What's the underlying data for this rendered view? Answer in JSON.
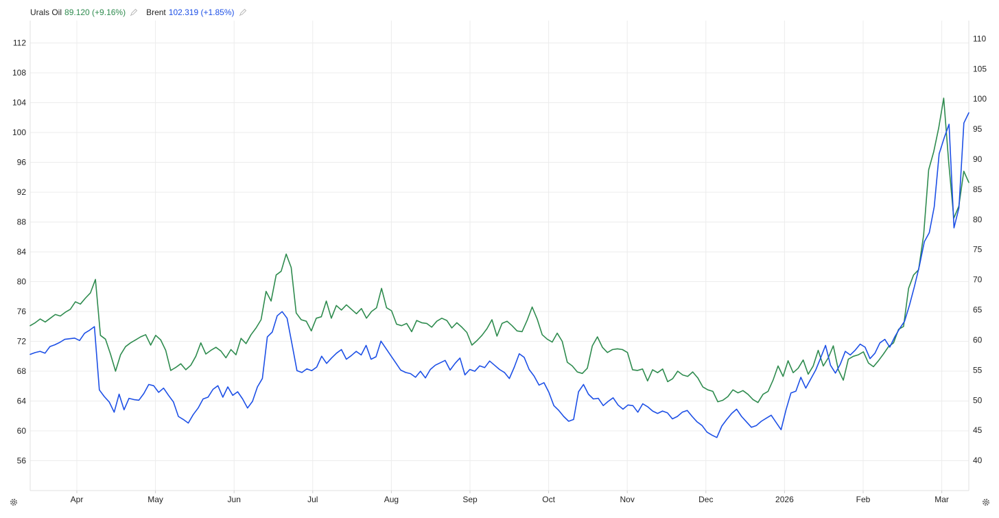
{
  "legend": {
    "a_name": "Urals Oil",
    "a_value": "89.120 (+9.16%)",
    "b_name": "Brent",
    "b_value": "102.319 (+1.85%)"
  },
  "icons": {
    "edit": "pencil-icon",
    "settings": "gear-icon"
  },
  "chart_data": {
    "type": "line",
    "x_labels": [
      "Apr",
      "May",
      "Jun",
      "Jul",
      "Aug",
      "Sep",
      "Oct",
      "Nov",
      "Dec",
      "2026",
      "Feb",
      "Mar"
    ],
    "y_left": {
      "ticks": [
        56,
        60,
        64,
        68,
        72,
        76,
        80,
        84,
        88,
        92,
        96,
        100,
        104,
        108,
        112
      ],
      "range": [
        52,
        115
      ]
    },
    "y_right": {
      "ticks": [
        40,
        45,
        50,
        55,
        60,
        65,
        70,
        75,
        80,
        85,
        90,
        95,
        100,
        105,
        110
      ],
      "range": [
        35,
        113
      ]
    },
    "grid": true,
    "legend_position": "top-left",
    "series": [
      {
        "name": "Urals Oil",
        "color": "#2e8b4e",
        "axis": "left",
        "values": [
          74.1,
          74.5,
          75.0,
          74.6,
          75.1,
          75.6,
          75.4,
          75.9,
          76.3,
          77.3,
          77.0,
          77.8,
          78.5,
          80.3,
          72.8,
          72.3,
          70.3,
          68.0,
          70.2,
          71.3,
          71.8,
          72.2,
          72.6,
          72.9,
          71.5,
          72.8,
          72.2,
          70.8,
          68.1,
          68.5,
          69.0,
          68.2,
          68.8,
          70.0,
          71.8,
          70.3,
          70.8,
          71.2,
          70.7,
          69.8,
          70.9,
          70.2,
          72.4,
          71.7,
          72.9,
          73.8,
          74.9,
          78.7,
          77.4,
          80.9,
          81.4,
          83.7,
          81.9,
          75.8,
          74.9,
          74.7,
          73.4,
          75.1,
          75.3,
          77.4,
          75.1,
          76.8,
          76.2,
          76.9,
          76.3,
          75.7,
          76.4,
          75.1,
          76.0,
          76.5,
          79.1,
          76.5,
          76.1,
          74.3,
          74.1,
          74.4,
          73.3,
          74.8,
          74.5,
          74.4,
          73.9,
          74.7,
          75.1,
          74.8,
          73.8,
          74.5,
          73.9,
          73.2,
          71.5,
          72.1,
          72.8,
          73.7,
          74.9,
          72.7,
          74.4,
          74.7,
          74.1,
          73.4,
          73.3,
          74.8,
          76.6,
          75.0,
          72.9,
          72.3,
          71.9,
          73.1,
          72.0,
          69.2,
          68.7,
          67.9,
          67.7,
          68.4,
          71.4,
          72.6,
          71.2,
          70.5,
          70.9,
          71.0,
          70.9,
          70.5,
          68.2,
          68.1,
          68.3,
          66.7,
          68.2,
          67.8,
          68.3,
          66.6,
          67.0,
          68.0,
          67.5,
          67.3,
          67.9,
          67.1,
          65.9,
          65.5,
          65.3,
          63.9,
          64.1,
          64.6,
          65.5,
          65.1,
          65.4,
          64.9,
          64.2,
          63.8,
          64.9,
          65.3,
          66.8,
          68.7,
          67.3,
          69.4,
          67.8,
          68.4,
          69.5,
          67.6,
          68.7,
          70.8,
          68.7,
          69.8,
          71.4,
          68.2,
          66.8,
          69.6,
          70.0,
          70.2,
          70.6,
          69.1,
          68.6,
          69.4,
          70.3,
          71.3,
          71.8,
          73.6,
          74.0,
          79.1,
          80.9,
          81.6,
          86.3,
          95.0,
          97.4,
          100.6,
          104.6,
          96.0,
          88.5,
          90.1,
          94.8,
          93.3
        ]
      },
      {
        "name": "Brent",
        "color": "#1c4fe6",
        "axis": "right",
        "values": [
          57.6,
          57.9,
          58.1,
          57.8,
          58.9,
          59.2,
          59.6,
          60.1,
          60.2,
          60.3,
          59.9,
          61.1,
          61.6,
          62.2,
          51.7,
          50.6,
          49.7,
          48.0,
          51.0,
          48.4,
          50.3,
          50.1,
          50.0,
          51.1,
          52.6,
          52.4,
          51.3,
          52.0,
          50.8,
          49.7,
          47.3,
          46.8,
          46.2,
          47.6,
          48.7,
          50.2,
          50.5,
          51.8,
          52.4,
          50.5,
          52.2,
          50.8,
          51.4,
          50.2,
          48.7,
          49.8,
          52.2,
          53.6,
          60.5,
          61.3,
          64.0,
          64.7,
          63.6,
          59.3,
          54.9,
          54.6,
          55.2,
          54.9,
          55.5,
          57.3,
          56.1,
          57.0,
          57.8,
          58.4,
          56.8,
          57.4,
          58.1,
          57.5,
          59.1,
          56.8,
          57.2,
          59.8,
          58.6,
          57.4,
          56.2,
          55.0,
          54.6,
          54.4,
          53.8,
          54.8,
          53.7,
          55.1,
          55.8,
          56.2,
          56.6,
          55.0,
          56.1,
          57.0,
          54.2,
          55.1,
          54.8,
          55.7,
          55.4,
          56.5,
          55.8,
          55.1,
          54.6,
          53.6,
          55.5,
          57.7,
          57.1,
          55.1,
          54.0,
          52.5,
          52.9,
          51.3,
          49.1,
          48.3,
          47.3,
          46.5,
          46.8,
          51.4,
          52.6,
          51.0,
          50.2,
          50.3,
          49.1,
          49.8,
          50.4,
          49.2,
          48.5,
          49.2,
          49.1,
          48.0,
          49.4,
          48.9,
          48.2,
          47.8,
          48.2,
          47.9,
          46.9,
          47.3,
          48.0,
          48.3,
          47.3,
          46.4,
          45.8,
          44.7,
          44.2,
          43.8,
          45.7,
          46.8,
          47.8,
          48.5,
          47.3,
          46.4,
          45.5,
          45.8,
          46.5,
          47.0,
          47.5,
          46.3,
          45.1,
          48.4,
          51.2,
          51.5,
          53.8,
          52.0,
          53.5,
          55.0,
          57.0,
          59.1,
          55.8,
          54.5,
          56.0,
          58.1,
          57.5,
          58.3,
          59.3,
          58.8,
          56.9,
          57.8,
          59.5,
          60.1,
          58.8,
          60.5,
          61.9,
          63.1,
          65.8,
          68.9,
          72.3,
          76.3,
          77.8,
          82.1,
          90.9,
          93.5,
          95.8,
          78.6,
          81.9,
          96.0,
          97.7
        ]
      }
    ]
  }
}
